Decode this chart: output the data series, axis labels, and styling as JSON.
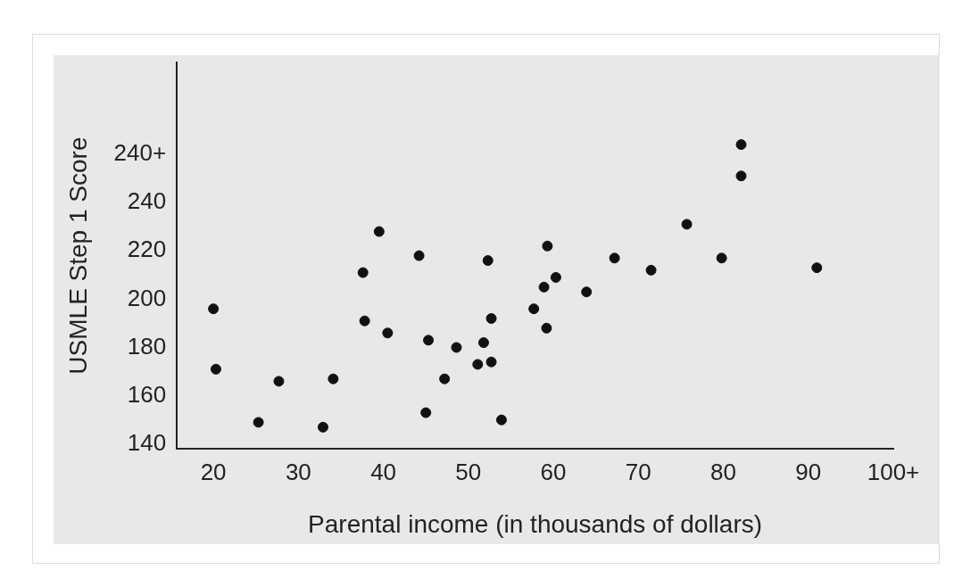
{
  "chart_data": {
    "type": "scatter",
    "xlabel": "Parental income (in thousands of dollars)",
    "ylabel": "USMLE Step 1 Score",
    "xlim": [
      15.7,
      100
    ],
    "xticks": [
      20,
      30,
      40,
      50,
      60,
      70,
      80,
      90,
      {
        "value": 100,
        "label": "100+"
      }
    ],
    "ylim": [
      138,
      298
    ],
    "yticks": [
      140,
      160,
      180,
      200,
      220,
      240,
      {
        "value": 260,
        "label": "240+"
      }
    ],
    "grid": false,
    "legend": false,
    "marker": "circle",
    "series": [
      {
        "color": "#111111",
        "x": [
          20,
          20.3,
          25.3,
          27.7,
          32.9,
          34.1,
          37.6,
          37.8,
          39.5,
          40.5,
          44.2,
          45,
          45.3,
          47.2,
          48.6,
          51.1,
          51.8,
          52.3,
          52.7,
          52.7,
          53.9,
          57.7,
          58.9,
          59.2,
          59.3,
          60.3,
          63.9,
          67.2,
          71.5,
          75.7,
          79.8,
          82.1,
          82.1,
          91
        ],
        "values": [
          196,
          171,
          149,
          166,
          147,
          167,
          211,
          191,
          228,
          186,
          218,
          153,
          183,
          167,
          180,
          173,
          182,
          216,
          192,
          174,
          150,
          196,
          205,
          188,
          222,
          209,
          203,
          217,
          212,
          231,
          217,
          251,
          264,
          213
        ]
      }
    ]
  }
}
